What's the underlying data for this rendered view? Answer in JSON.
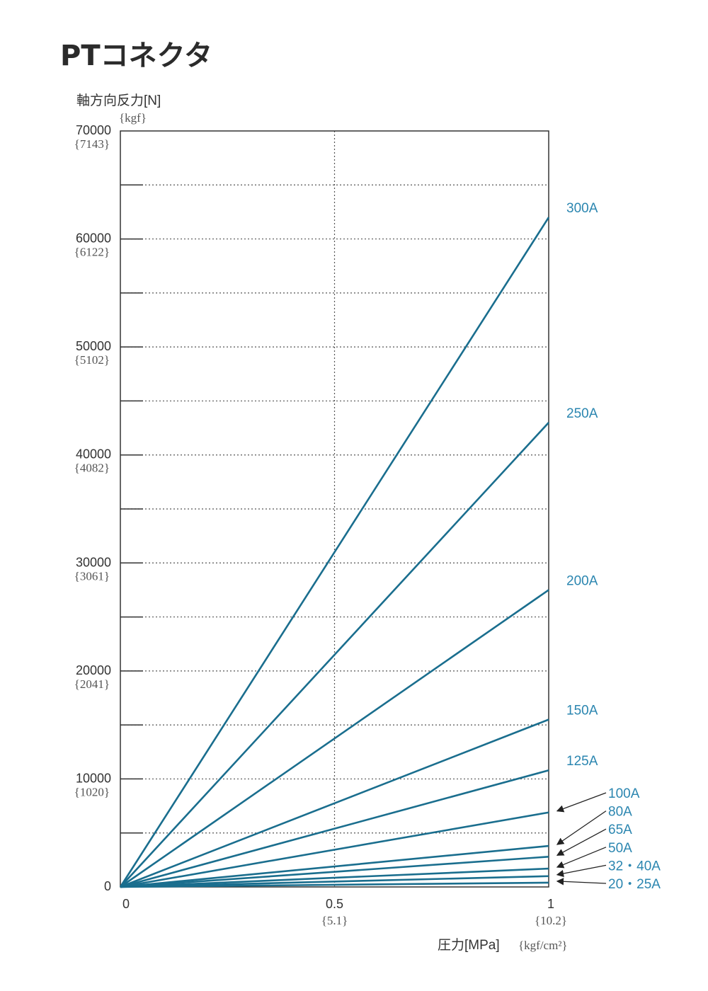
{
  "title": "PTコネクタ",
  "chart_data": {
    "type": "line",
    "ylabel": "軸方向反力[N]",
    "ylabel_sub": "{kgf}",
    "xlabel": "圧力[MPa]",
    "xlabel_sub": "{kgf/cm²}",
    "xlim": [
      0,
      1
    ],
    "ylim": [
      0,
      70000
    ],
    "x_ticks": [
      {
        "value": 0,
        "label": "0",
        "sub": ""
      },
      {
        "value": 0.5,
        "label": "0.5",
        "sub": "{5.1}"
      },
      {
        "value": 1,
        "label": "1",
        "sub": "{10.2}"
      }
    ],
    "y_ticks": [
      {
        "value": 0,
        "label": "0",
        "sub": ""
      },
      {
        "value": 10000,
        "label": "10000",
        "sub": "{1020}"
      },
      {
        "value": 20000,
        "label": "20000",
        "sub": "{2041}"
      },
      {
        "value": 30000,
        "label": "30000",
        "sub": "{3061}"
      },
      {
        "value": 40000,
        "label": "40000",
        "sub": "{4082}"
      },
      {
        "value": 50000,
        "label": "50000",
        "sub": "{5102}"
      },
      {
        "value": 60000,
        "label": "60000",
        "sub": "{6122}"
      },
      {
        "value": 70000,
        "label": "70000",
        "sub": "{7143}"
      }
    ],
    "minor_grid_y": [
      5000,
      15000,
      25000,
      35000,
      45000,
      55000,
      65000
    ],
    "series_color": "#1a6e8e",
    "label_color": "#2b86b0",
    "series": [
      {
        "name": "300A",
        "x": [
          0,
          1
        ],
        "values": [
          0,
          62000
        ]
      },
      {
        "name": "250A",
        "x": [
          0,
          1
        ],
        "values": [
          0,
          43000
        ]
      },
      {
        "name": "200A",
        "x": [
          0,
          1
        ],
        "values": [
          0,
          27500
        ]
      },
      {
        "name": "150A",
        "x": [
          0,
          1
        ],
        "values": [
          0,
          15500
        ]
      },
      {
        "name": "125A",
        "x": [
          0,
          1
        ],
        "values": [
          0,
          10800
        ]
      },
      {
        "name": "100A",
        "x": [
          0,
          1
        ],
        "values": [
          0,
          6900
        ]
      },
      {
        "name": "80A",
        "x": [
          0,
          1
        ],
        "values": [
          0,
          3800
        ]
      },
      {
        "name": "65A",
        "x": [
          0,
          1
        ],
        "values": [
          0,
          2800
        ]
      },
      {
        "name": "50A",
        "x": [
          0,
          1
        ],
        "values": [
          0,
          1700
        ]
      },
      {
        "name": "32・40A",
        "x": [
          0,
          1
        ],
        "values": [
          0,
          1000
        ]
      },
      {
        "name": "20・25A",
        "x": [
          0,
          1
        ],
        "values": [
          0,
          400
        ]
      }
    ]
  }
}
